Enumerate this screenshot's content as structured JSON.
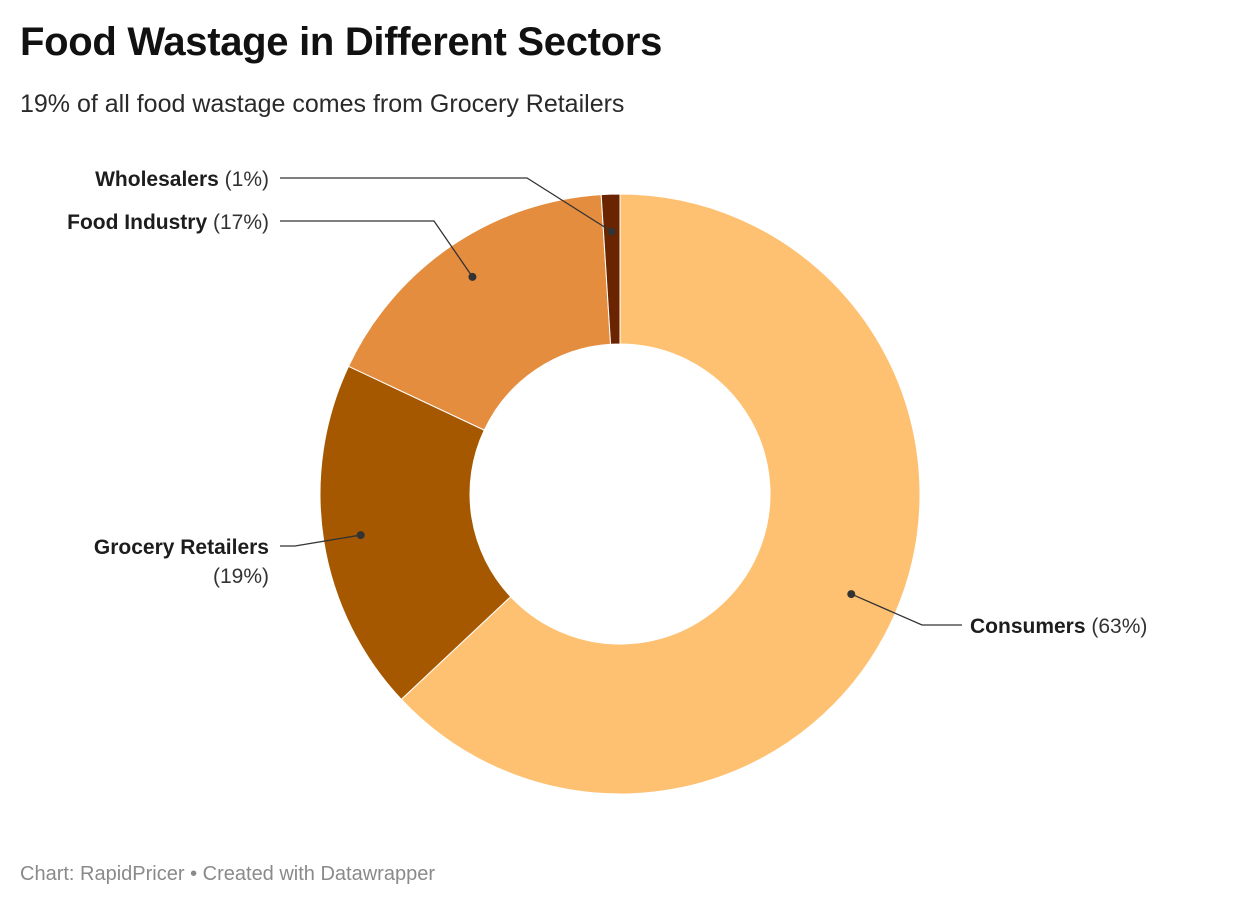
{
  "header": {
    "title": "Food Wastage in Different Sectors",
    "subtitle": "19% of all food wastage comes from Grocery Retailers"
  },
  "footer": {
    "source_label": "Chart:",
    "source": "RapidPricer",
    "separator": "•",
    "credit": "Created with Datawrapper"
  },
  "chart_data": {
    "type": "pie",
    "variant": "donut",
    "title": "Food Wastage in Different Sectors",
    "subtitle": "19% of all food wastage comes from Grocery Retailers",
    "slices": [
      {
        "name": "Consumers",
        "value": 63,
        "label_value": "(63%)",
        "color": "#fec172"
      },
      {
        "name": "Grocery Retailers",
        "value": 19,
        "label_value": "(19%)",
        "color": "#a65800"
      },
      {
        "name": "Food Industry",
        "value": 17,
        "label_value": "(17%)",
        "color": "#e48d3e"
      },
      {
        "name": "Wholesalers",
        "value": 1,
        "label_value": "(1%)",
        "color": "#6b2400"
      }
    ],
    "start": "top",
    "direction": "clockwise",
    "legend": "none",
    "labels": "outside-with-leader-lines"
  }
}
